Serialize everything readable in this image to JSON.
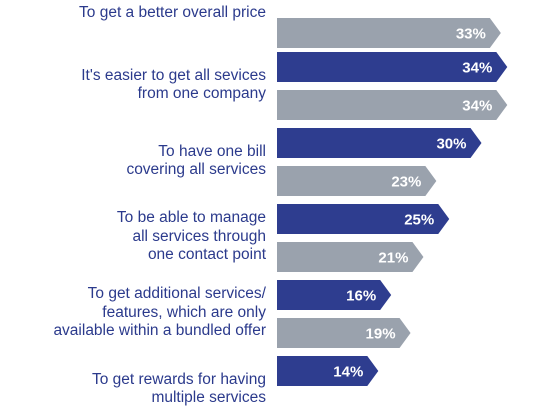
{
  "chart_data": {
    "type": "bar",
    "orientation": "horizontal",
    "title": "",
    "xlabel": "",
    "ylabel": "",
    "xlim": [
      0,
      40
    ],
    "grid": false,
    "legend": "none",
    "categories": [
      "To get a better overall price",
      "It's easier to get all sevices\nfrom one company",
      "To have one bill\ncovering all services",
      "To be able to manage\nall services through\none contact point",
      "To get additional services/\nfeatures, which are only\navailable within a bundled offer",
      "To get rewards for having\nmultiple services"
    ],
    "series": [
      {
        "values": [
          null,
          34,
          30,
          25,
          16,
          14
        ],
        "labels": [
          "",
          "34%",
          "30%",
          "25%",
          "16%",
          "14%"
        ],
        "color": "#2e3d8f"
      },
      {
        "values": [
          33,
          34,
          23,
          21,
          19,
          null
        ],
        "labels": [
          "33%",
          "34%",
          "23%",
          "21%",
          "19%",
          ""
        ],
        "color": "#9aa2ad"
      }
    ]
  }
}
